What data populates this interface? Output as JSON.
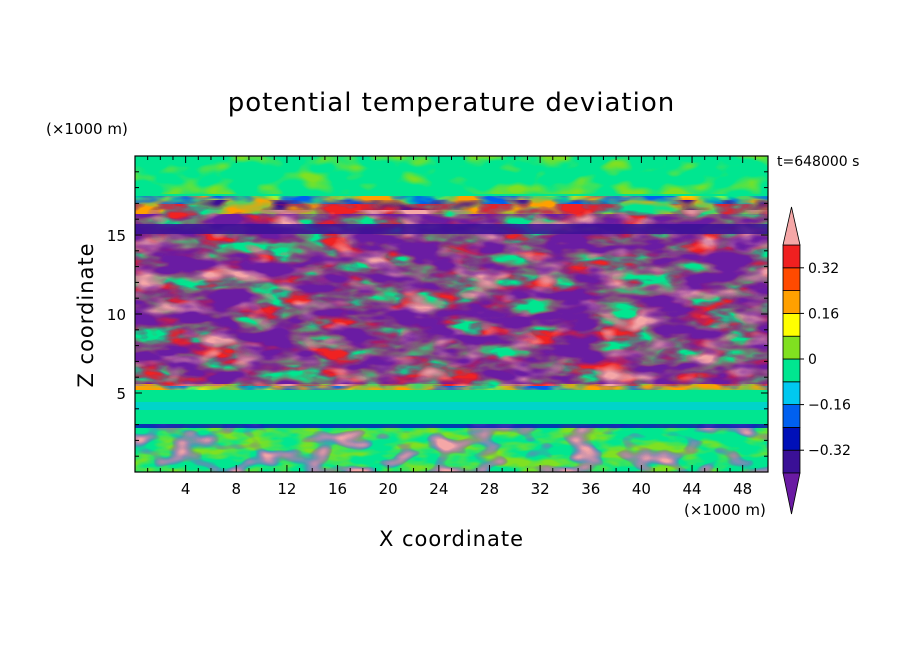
{
  "chart_data": {
    "type": "heatmap",
    "title": "potential temperature deviation",
    "xlabel": "X coordinate",
    "ylabel": "Z coordinate",
    "x_unit": "(×1000 m)",
    "y_unit": "(×1000 m)",
    "time_label": "t=648000 s",
    "xlim": [
      0,
      50
    ],
    "ylim": [
      0,
      20
    ],
    "x_ticks": [
      4,
      8,
      12,
      16,
      20,
      24,
      28,
      32,
      36,
      40,
      44,
      48
    ],
    "y_ticks": [
      5,
      10,
      15
    ],
    "colorbar": {
      "levels": [
        -0.4,
        -0.32,
        -0.24,
        -0.16,
        -0.08,
        0,
        0.08,
        0.16,
        0.24,
        0.32,
        0.4
      ],
      "colors": [
        "#6a1aa3",
        "#3a1096",
        "#0010b8",
        "#0060f0",
        "#00c8f0",
        "#00e690",
        "#80e020",
        "#ffff00",
        "#ffa000",
        "#ff4a00",
        "#f02020",
        "#f5a7a7"
      ],
      "labels": [
        "0.32",
        "0.16",
        "0",
        "−0.16",
        "−0.32"
      ],
      "label_values": [
        0.32,
        0.16,
        0,
        -0.16,
        -0.32
      ]
    }
  }
}
